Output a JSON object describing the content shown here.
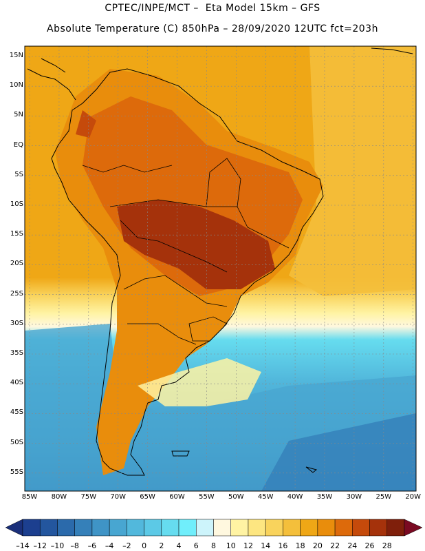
{
  "header": {
    "line1": "CPTEC/INPE/MCT –  Eta Model 15km – GFS",
    "line2": "Absolute Temperature (C) 850hPa – 28/09/2020 12UTC fct=203h"
  },
  "axes": {
    "lat_labels": [
      "15N",
      "10N",
      "5N",
      "EQ",
      "5S",
      "10S",
      "15S",
      "20S",
      "25S",
      "30S",
      "35S",
      "40S",
      "45S",
      "50S",
      "55S"
    ],
    "lon_labels": [
      "85W",
      "80W",
      "75W",
      "70W",
      "65W",
      "60W",
      "55W",
      "50W",
      "45W",
      "40W",
      "35W",
      "30W",
      "25W",
      "20W"
    ]
  },
  "colorbar": {
    "labels": [
      "-14",
      "-12",
      "-10",
      "-8",
      "-6",
      "-4",
      "-2",
      "0",
      "2",
      "4",
      "6",
      "8",
      "10",
      "12",
      "14",
      "16",
      "18",
      "20",
      "22",
      "24",
      "26",
      "28"
    ],
    "colors": [
      "#1c3f8f",
      "#23569e",
      "#2b6aab",
      "#3580b9",
      "#3f94c6",
      "#48a6d1",
      "#52b8dc",
      "#5cc9e6",
      "#66dcef",
      "#70eefb",
      "#cdf4fb",
      "#fff8df",
      "#fff3a3",
      "#fde681",
      "#f9d35c",
      "#f4bf3b",
      "#efa716",
      "#e98d0c",
      "#dd6a0b",
      "#c54a0b",
      "#a5320b",
      "#7f1f0b"
    ],
    "end_low": "#1a2f7a",
    "end_high": "#7a0a22"
  }
}
